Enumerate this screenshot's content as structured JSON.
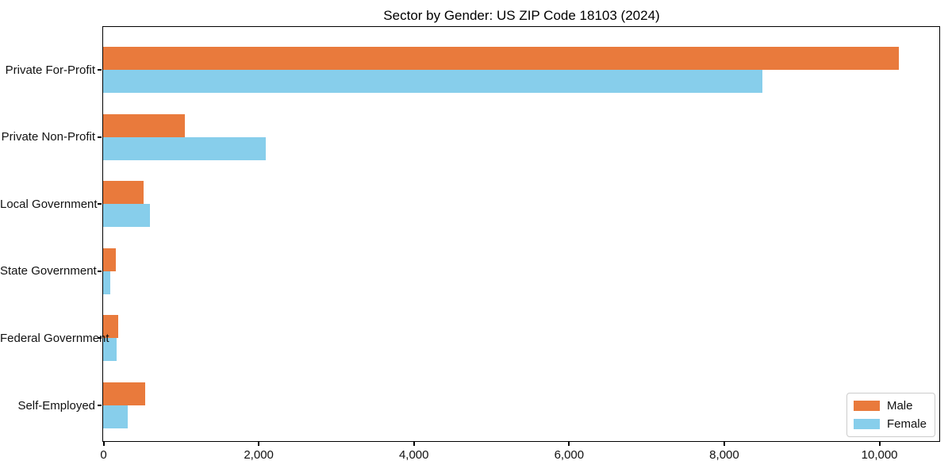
{
  "chart": {
    "title": "Sector by Gender: US ZIP Code 18103 (2024)"
  },
  "chart_data": {
    "type": "bar",
    "orientation": "horizontal",
    "title": "Sector by Gender: US ZIP Code 18103 (2024)",
    "categories": [
      "Private For-Profit",
      "Private Non-Profit",
      "Local Government",
      "State Government",
      "Federal Government",
      "Self-Employed"
    ],
    "series": [
      {
        "name": "Male",
        "color": "#E97A3C",
        "values": [
          10250,
          1050,
          520,
          160,
          190,
          540
        ]
      },
      {
        "name": "Female",
        "color": "#87CEEB",
        "values": [
          8500,
          2100,
          600,
          90,
          170,
          320
        ]
      }
    ],
    "xlabel": "",
    "ylabel": "",
    "xlim": [
      0,
      10766
    ],
    "x_ticks": [
      0,
      2000,
      4000,
      6000,
      8000,
      10000
    ],
    "x_tick_labels": [
      "0",
      "2,000",
      "4,000",
      "6,000",
      "8,000",
      "10,000"
    ],
    "grid": false,
    "legend_position": "lower right",
    "colors": {
      "male": "#E97A3C",
      "female": "#87CEEB",
      "axis": "#000000",
      "text": "#111111"
    }
  }
}
